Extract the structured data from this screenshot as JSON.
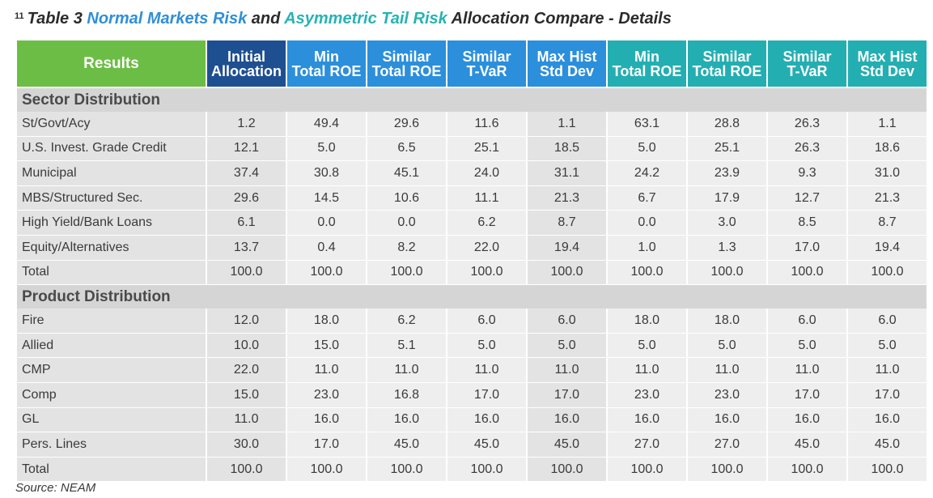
{
  "title": {
    "footnote": "11",
    "prefix": "Table 3 ",
    "normal": "Normal Markets Risk",
    "and": " and ",
    "asym": "Asymmetric Tail Risk",
    "suffix": " Allocation Compare - Details"
  },
  "headers": [
    {
      "l1": "Results",
      "l2": "",
      "style": "results"
    },
    {
      "l1": "Initial",
      "l2": "Allocation",
      "style": "initial"
    },
    {
      "l1": "Min",
      "l2": "Total ROE",
      "style": "blue"
    },
    {
      "l1": "Similar",
      "l2": "Total ROE",
      "style": "blue"
    },
    {
      "l1": "Similar",
      "l2": "T-VaR",
      "style": "blue"
    },
    {
      "l1": "Max Hist",
      "l2": "Std Dev",
      "style": "blue"
    },
    {
      "l1": "Min",
      "l2": "Total ROE",
      "style": "teal"
    },
    {
      "l1": "Similar",
      "l2": "Total ROE",
      "style": "teal"
    },
    {
      "l1": "Similar",
      "l2": "T-VaR",
      "style": "teal"
    },
    {
      "l1": "Max Hist",
      "l2": "Std Dev",
      "style": "teal"
    }
  ],
  "sections": [
    {
      "title": "Sector Distribution",
      "rows": [
        {
          "label": "St/Govt/Acy",
          "values": [
            "1.2",
            "49.4",
            "29.6",
            "11.6",
            "1.1",
            "63.1",
            "28.8",
            "26.3",
            "1.1"
          ]
        },
        {
          "label": "U.S. Invest. Grade Credit",
          "values": [
            "12.1",
            "5.0",
            "6.5",
            "25.1",
            "18.5",
            "5.0",
            "25.1",
            "26.3",
            "18.6"
          ]
        },
        {
          "label": "Municipal",
          "values": [
            "37.4",
            "30.8",
            "45.1",
            "24.0",
            "31.1",
            "24.2",
            "23.9",
            "9.3",
            "31.0"
          ]
        },
        {
          "label": "MBS/Structured Sec.",
          "values": [
            "29.6",
            "14.5",
            "10.6",
            "11.1",
            "21.3",
            "6.7",
            "17.9",
            "12.7",
            "21.3"
          ]
        },
        {
          "label": "High Yield/Bank Loans",
          "values": [
            "6.1",
            "0.0",
            "0.0",
            "6.2",
            "8.7",
            "0.0",
            "3.0",
            "8.5",
            "8.7"
          ]
        },
        {
          "label": "Equity/Alternatives",
          "values": [
            "13.7",
            "0.4",
            "8.2",
            "22.0",
            "19.4",
            "1.0",
            "1.3",
            "17.0",
            "19.4"
          ]
        },
        {
          "label": "Total",
          "values": [
            "100.0",
            "100.0",
            "100.0",
            "100.0",
            "100.0",
            "100.0",
            "100.0",
            "100.0",
            "100.0"
          ]
        }
      ]
    },
    {
      "title": "Product Distribution",
      "rows": [
        {
          "label": "Fire",
          "values": [
            "12.0",
            "18.0",
            "6.2",
            "6.0",
            "6.0",
            "18.0",
            "18.0",
            "6.0",
            "6.0"
          ]
        },
        {
          "label": "Allied",
          "values": [
            "10.0",
            "15.0",
            "5.1",
            "5.0",
            "5.0",
            "5.0",
            "5.0",
            "5.0",
            "5.0"
          ]
        },
        {
          "label": "CMP",
          "values": [
            "22.0",
            "11.0",
            "11.0",
            "11.0",
            "11.0",
            "11.0",
            "11.0",
            "11.0",
            "11.0"
          ]
        },
        {
          "label": "Comp",
          "values": [
            "15.0",
            "23.0",
            "16.8",
            "17.0",
            "17.0",
            "23.0",
            "23.0",
            "17.0",
            "17.0"
          ]
        },
        {
          "label": "GL",
          "values": [
            "11.0",
            "16.0",
            "16.0",
            "16.0",
            "16.0",
            "16.0",
            "16.0",
            "16.0",
            "16.0"
          ]
        },
        {
          "label": "Pers. Lines",
          "values": [
            "30.0",
            "17.0",
            "45.0",
            "45.0",
            "45.0",
            "27.0",
            "27.0",
            "45.0",
            "45.0"
          ]
        },
        {
          "label": "Total",
          "values": [
            "100.0",
            "100.0",
            "100.0",
            "100.0",
            "100.0",
            "100.0",
            "100.0",
            "100.0",
            "100.0"
          ]
        }
      ]
    }
  ],
  "source": "Source: NEAM",
  "colors": {
    "results_header": "#6cbd45",
    "initial_header": "#1e4f91",
    "normal_header": "#2b8fdb",
    "asym_header": "#23aeb2",
    "section_bg": "#d5d5d5",
    "cell_dark": "#e3e3e3",
    "cell_light": "#eeeeee"
  }
}
